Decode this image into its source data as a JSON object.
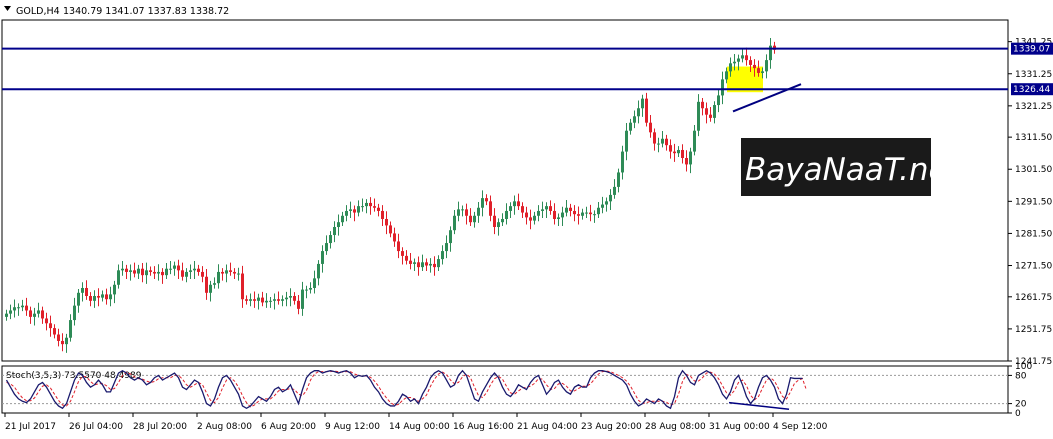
{
  "header": {
    "symbol": "GOLD,H4",
    "ohlc": "1340.79 1341.07 1337.83 1338.72"
  },
  "watermark": {
    "text": "BayaNaaT.net"
  },
  "stoch_header": "Stoch(3,5,3) 73.5570 48.4989",
  "colors": {
    "bull": "#2e8b57",
    "bear": "#e0202a",
    "level_line": "#00008b",
    "trend_line": "#000080",
    "highlight": "#ffff00",
    "stoch_main": "#1a1a6e",
    "stoch_signal": "#e0202a",
    "watermark_bg": "#1a1a1a",
    "watermark_fg": "#ffffff"
  },
  "chart_data": [
    {
      "type": "candlestick",
      "symbol": "GOLD",
      "timeframe": "H4",
      "ylim": [
        1241.75,
        1348.0
      ],
      "y_ticks": [
        "1341.25",
        "1331.25",
        "1321.25",
        "1311.50",
        "1301.50",
        "1291.50",
        "1281.50",
        "1271.50",
        "1261.75",
        "1251.75",
        "1241.75"
      ],
      "y_tick_values": [
        1341.25,
        1331.25,
        1321.25,
        1311.5,
        1301.5,
        1291.5,
        1281.5,
        1271.5,
        1261.75,
        1251.75,
        1241.75
      ],
      "x_ticks": [
        "21 Jul 2017",
        "26 Jul 04:00",
        "28 Jul 20:00",
        "2 Aug 08:00",
        "6 Aug 20:00",
        "9 Aug 12:00",
        "14 Aug 00:00",
        "16 Aug 16:00",
        "21 Aug 04:00",
        "23 Aug 20:00",
        "28 Aug 08:00",
        "31 Aug 00:00",
        "4 Sep 12:00"
      ],
      "x_tick_bars": [
        0,
        16,
        32,
        48,
        64,
        80,
        96,
        112,
        128,
        144,
        160,
        176,
        192
      ],
      "levels": [
        {
          "label": "1339.07",
          "value": 1339.07
        },
        {
          "label": "1326.44",
          "value": 1326.44
        }
      ],
      "trendline": {
        "from": {
          "bar": 182,
          "price": 1319.5
        },
        "to": {
          "bar": 199,
          "price": 1328.0
        }
      },
      "highlight_zone": {
        "from_bar": 181,
        "to_bar": 189,
        "price_low": 1325.5,
        "price_high": 1333.5
      },
      "closes": [
        1256.5,
        1257.5,
        1258.5,
        1258.5,
        1259.0,
        1257.5,
        1255.5,
        1256.5,
        1257.5,
        1255.0,
        1253.5,
        1252.0,
        1250.0,
        1248.0,
        1247.0,
        1249.0,
        1254.5,
        1259.0,
        1263.0,
        1264.5,
        1262.0,
        1260.5,
        1262.0,
        1261.5,
        1262.5,
        1261.0,
        1262.5,
        1265.5,
        1270.0,
        1270.5,
        1269.5,
        1270.0,
        1269.0,
        1270.5,
        1268.5,
        1270.0,
        1269.5,
        1269.0,
        1269.5,
        1268.5,
        1270.5,
        1270.5,
        1271.5,
        1270.0,
        1268.0,
        1269.5,
        1270.0,
        1270.5,
        1269.5,
        1268.0,
        1263.0,
        1265.5,
        1266.0,
        1269.5,
        1269.0,
        1270.0,
        1269.5,
        1269.0,
        1269.0,
        1261.0,
        1260.5,
        1261.0,
        1260.5,
        1261.5,
        1260.0,
        1260.5,
        1260.5,
        1261.0,
        1260.5,
        1261.0,
        1261.5,
        1262.0,
        1260.5,
        1258.0,
        1264.0,
        1264.0,
        1264.5,
        1267.5,
        1272.0,
        1276.0,
        1278.5,
        1281.0,
        1283.5,
        1285.0,
        1287.0,
        1288.5,
        1289.0,
        1288.0,
        1290.0,
        1290.0,
        1291.0,
        1290.0,
        1289.5,
        1288.5,
        1286.0,
        1284.0,
        1281.5,
        1279.0,
        1276.0,
        1274.5,
        1273.0,
        1272.0,
        1272.5,
        1271.0,
        1272.5,
        1271.5,
        1272.0,
        1271.0,
        1273.5,
        1276.0,
        1278.5,
        1282.5,
        1287.0,
        1289.0,
        1289.0,
        1287.0,
        1285.0,
        1287.0,
        1289.5,
        1292.5,
        1291.5,
        1287.0,
        1283.5,
        1285.0,
        1286.0,
        1288.5,
        1290.0,
        1291.5,
        1290.0,
        1288.0,
        1286.5,
        1285.5,
        1287.0,
        1288.5,
        1289.0,
        1290.0,
        1288.5,
        1286.0,
        1286.5,
        1288.0,
        1289.5,
        1288.5,
        1287.5,
        1287.0,
        1288.0,
        1288.0,
        1287.5,
        1287.5,
        1289.5,
        1290.5,
        1291.5,
        1293.5,
        1296.0,
        1300.5,
        1307.0,
        1313.5,
        1316.0,
        1318.0,
        1320.5,
        1323.5,
        1316.0,
        1313.0,
        1309.5,
        1309.5,
        1311.0,
        1309.0,
        1307.0,
        1306.5,
        1307.5,
        1305.0,
        1303.0,
        1307.0,
        1313.5,
        1322.5,
        1320.5,
        1318.5,
        1317.5,
        1321.5,
        1324.5,
        1329.5,
        1332.0,
        1334.5,
        1335.0,
        1336.0,
        1337.0,
        1335.5,
        1334.0,
        1333.0,
        1331.5,
        1332.0,
        1335.5,
        1340.0,
        1338.7
      ]
    },
    {
      "type": "line",
      "name": "Stoch(3,5,3)",
      "ylim": [
        0,
        100
      ],
      "y_ticks": [
        "100",
        "80",
        "20",
        "0"
      ],
      "y_tick_values": [
        100,
        80,
        20,
        0
      ],
      "main": [
        70,
        55,
        40,
        30,
        25,
        22,
        30,
        45,
        60,
        65,
        55,
        40,
        25,
        15,
        10,
        20,
        45,
        70,
        85,
        80,
        65,
        55,
        60,
        70,
        60,
        45,
        45,
        65,
        85,
        90,
        85,
        75,
        70,
        75,
        70,
        60,
        65,
        75,
        80,
        70,
        75,
        80,
        85,
        75,
        55,
        50,
        60,
        70,
        65,
        45,
        20,
        15,
        30,
        55,
        75,
        80,
        70,
        55,
        40,
        15,
        10,
        15,
        25,
        35,
        30,
        25,
        35,
        50,
        55,
        45,
        50,
        60,
        40,
        20,
        50,
        75,
        85,
        90,
        90,
        85,
        88,
        90,
        88,
        85,
        88,
        90,
        85,
        75,
        80,
        78,
        80,
        70,
        55,
        45,
        30,
        20,
        15,
        15,
        25,
        40,
        35,
        25,
        30,
        20,
        40,
        55,
        75,
        85,
        90,
        85,
        70,
        55,
        60,
        80,
        90,
        80,
        55,
        30,
        25,
        45,
        60,
        75,
        85,
        75,
        55,
        40,
        35,
        45,
        60,
        55,
        50,
        65,
        75,
        80,
        60,
        40,
        50,
        65,
        70,
        55,
        45,
        40,
        55,
        60,
        55,
        55,
        75,
        85,
        90,
        90,
        88,
        85,
        80,
        75,
        70,
        60,
        40,
        25,
        15,
        20,
        30,
        25,
        20,
        30,
        25,
        15,
        10,
        35,
        75,
        90,
        80,
        65,
        60,
        80,
        85,
        90,
        85,
        75,
        60,
        40,
        30,
        45,
        70,
        80,
        60,
        35,
        20,
        30,
        55,
        75,
        80,
        70,
        55,
        30,
        20,
        40,
        75,
        73.56,
        73.56,
        73.56
      ],
      "signal": [
        65,
        62,
        55,
        42,
        32,
        26,
        26,
        32,
        45,
        57,
        60,
        53,
        40,
        27,
        17,
        15,
        25,
        45,
        67,
        78,
        77,
        67,
        60,
        62,
        63,
        58,
        50,
        52,
        65,
        80,
        87,
        83,
        77,
        73,
        72,
        68,
        65,
        67,
        73,
        75,
        75,
        75,
        80,
        80,
        72,
        60,
        55,
        60,
        65,
        60,
        43,
        27,
        22,
        33,
        53,
        70,
        75,
        68,
        55,
        37,
        22,
        13,
        17,
        25,
        30,
        30,
        30,
        37,
        47,
        50,
        50,
        52,
        50,
        40,
        37,
        48,
        70,
        83,
        88,
        88,
        88,
        88,
        89,
        88,
        87,
        88,
        88,
        83,
        80,
        78,
        79,
        76,
        68,
        57,
        43,
        32,
        22,
        17,
        18,
        27,
        33,
        33,
        30,
        25,
        30,
        38,
        57,
        72,
        83,
        87,
        82,
        70,
        62,
        65,
        77,
        83,
        75,
        55,
        37,
        33,
        43,
        60,
        73,
        78,
        72,
        57,
        43,
        40,
        47,
        53,
        55,
        57,
        63,
        73,
        72,
        60,
        50,
        52,
        62,
        63,
        57,
        47,
        47,
        52,
        57,
        57,
        62,
        72,
        83,
        88,
        89,
        88,
        84,
        80,
        75,
        68,
        57,
        42,
        27,
        20,
        22,
        25,
        25,
        25,
        25,
        23,
        17,
        20,
        40,
        67,
        82,
        78,
        68,
        68,
        75,
        85,
        87,
        83,
        73,
        58,
        43,
        38,
        48,
        65,
        70,
        58,
        38,
        28,
        35,
        53,
        70,
        75,
        68,
        52,
        35,
        30,
        45,
        63,
        70,
        73,
        48.5
      ]
    }
  ]
}
